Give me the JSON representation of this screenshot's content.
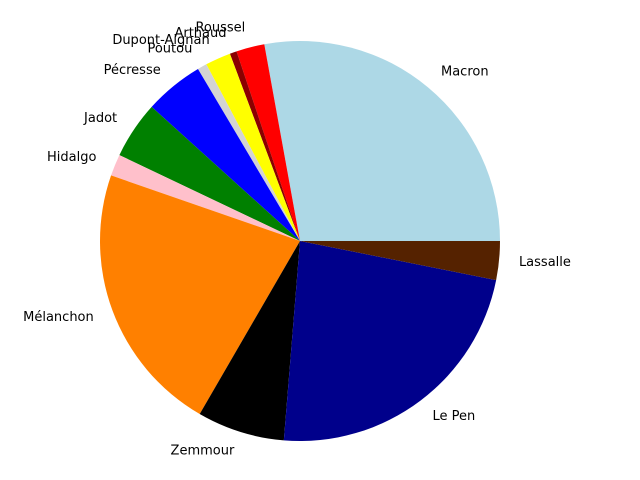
{
  "chart_data": {
    "type": "pie",
    "title": "",
    "start_angle_deg": 0,
    "direction": "counterclockwise",
    "slices": [
      {
        "label": "Macron",
        "value": 27.85,
        "color": "#add8e6"
      },
      {
        "label": "Roussel",
        "value": 2.28,
        "color": "#ff0000"
      },
      {
        "label": "Arthaud",
        "value": 0.56,
        "color": "#8b0000"
      },
      {
        "label": "Dupont-Aignan",
        "value": 2.06,
        "color": "#ffff00"
      },
      {
        "label": "Poutou",
        "value": 0.76,
        "color": "#d3d3d3"
      },
      {
        "label": "Pécresse",
        "value": 4.78,
        "color": "#0000ff"
      },
      {
        "label": "Jadot",
        "value": 4.63,
        "color": "#008000"
      },
      {
        "label": "Hidalgo",
        "value": 1.75,
        "color": "#ffc0cb"
      },
      {
        "label": "Mélanchon",
        "value": 21.95,
        "color": "#ff8000"
      },
      {
        "label": "Zemmour",
        "value": 7.07,
        "color": "#000000"
      },
      {
        "label": "Le Pen",
        "value": 23.15,
        "color": "#00008b"
      },
      {
        "label": "Lassalle",
        "value": 3.13,
        "color": "#552200"
      }
    ]
  }
}
